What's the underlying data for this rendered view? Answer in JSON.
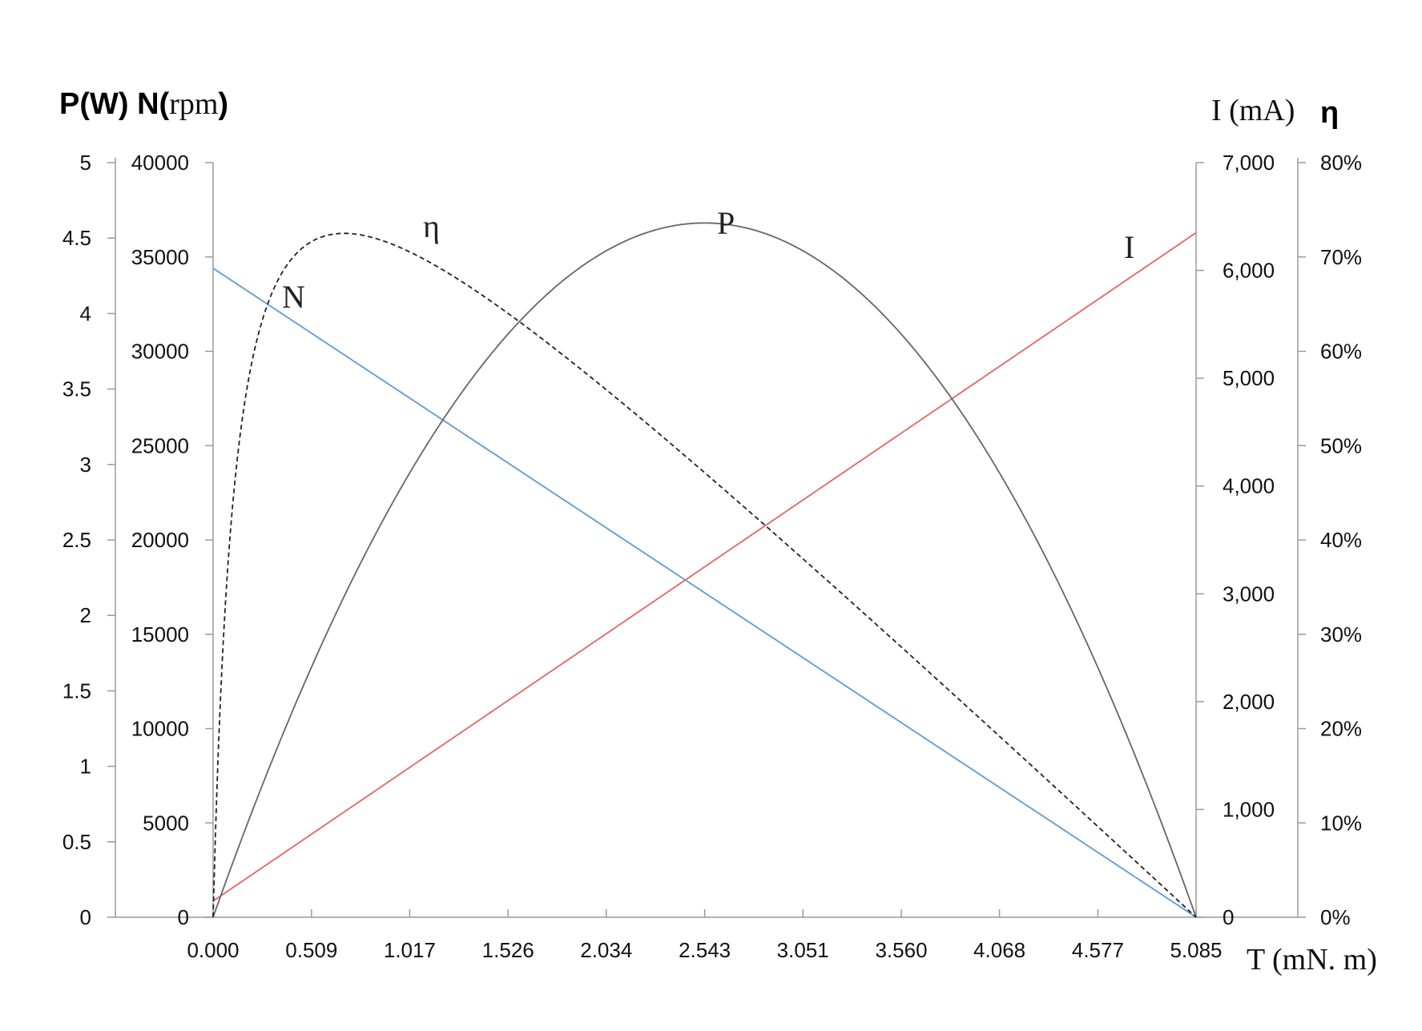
{
  "chart_data": {
    "type": "line",
    "axis_titles": {
      "left_prefix": "P(W) N(",
      "left_unit": "rpm",
      "left_suffix": ")",
      "current": "I (mA)",
      "efficiency": "η",
      "torque": "T (mN. m)"
    },
    "x": {
      "ticks": [
        "0.000",
        "0.509",
        "1.017",
        "1.526",
        "2.034",
        "2.543",
        "3.051",
        "3.560",
        "4.068",
        "4.577",
        "5.085"
      ],
      "range": [
        0,
        5.085
      ]
    },
    "axes": {
      "power": {
        "ticks": [
          "0",
          "0.5",
          "1",
          "1.5",
          "2",
          "2.5",
          "3",
          "3.5",
          "4",
          "4.5",
          "5"
        ],
        "range": [
          0,
          5
        ]
      },
      "speed": {
        "ticks": [
          "0",
          "5000",
          "10000",
          "15000",
          "20000",
          "25000",
          "30000",
          "35000",
          "40000"
        ],
        "range": [
          0,
          40000
        ]
      },
      "current": {
        "ticks": [
          "0",
          "1,000",
          "2,000",
          "3,000",
          "4,000",
          "5,000",
          "6,000",
          "7,000"
        ],
        "range": [
          0,
          7000
        ]
      },
      "efficiency": {
        "ticks": [
          "0%",
          "10%",
          "20%",
          "30%",
          "40%",
          "50%",
          "60%",
          "70%",
          "80%"
        ],
        "range": [
          0,
          80
        ]
      }
    },
    "series": [
      {
        "name": "N",
        "axis": "speed",
        "color": "#5b9bd5",
        "dash": "",
        "model": "linear",
        "start": [
          0,
          34400
        ],
        "end": [
          5.085,
          0
        ]
      },
      {
        "name": "I",
        "axis": "current",
        "color": "#e06666",
        "dash": "",
        "model": "linear",
        "start": [
          0,
          150
        ],
        "end": [
          5.085,
          6350
        ]
      },
      {
        "name": "P",
        "axis": "power",
        "color": "#666666",
        "dash": "",
        "model": "parabola",
        "zero_at": [
          0,
          5.085
        ],
        "peak": [
          2.543,
          4.6
        ]
      },
      {
        "name": "η",
        "axis": "efficiency",
        "color": "#222222",
        "dash": "6,4",
        "model": "efficiency",
        "no_load_current": 150,
        "stall_current": 6350,
        "peak": [
          0.64,
          72.5
        ]
      }
    ],
    "grid": false,
    "legend": "none"
  }
}
